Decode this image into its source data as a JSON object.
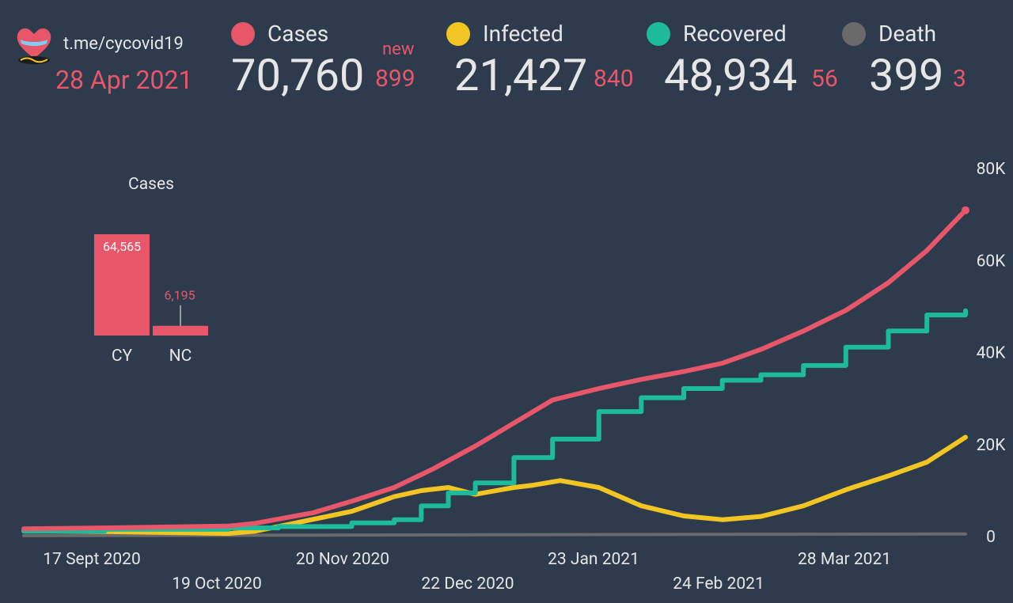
{
  "header": {
    "channel": "t.me/cycovid19",
    "date": "28 Apr 2021",
    "logo_icon": "cyprus-heart-icon"
  },
  "stats": {
    "cases": {
      "label": "Cases",
      "value": "70,760",
      "delta": "899",
      "new_tag": "new",
      "color": "#e8566a"
    },
    "infected": {
      "label": "Infected",
      "value": "21,427",
      "delta": "840",
      "color": "#f2c522"
    },
    "recovered": {
      "label": "Recovered",
      "value": "48,934",
      "delta": "56",
      "color": "#1dbb9a"
    },
    "death": {
      "label": "Death",
      "value": "399",
      "delta": "3",
      "color": "#6a6a6a"
    }
  },
  "chart_data": [
    {
      "type": "bar",
      "title": "Cases",
      "categories": [
        "CY",
        "NC"
      ],
      "values": [
        64565,
        6195
      ],
      "value_labels": [
        "64,565",
        "6,195"
      ],
      "color": "#e8566a"
    },
    {
      "type": "line",
      "x_ticks": [
        "17 Sept 2020",
        "19 Oct 2020",
        "20 Nov 2020",
        "22 Dec 2020",
        "23 Jan 2021",
        "24 Feb 2021",
        "28 Mar 2021"
      ],
      "y_ticks": [
        "80K",
        "60K",
        "40K",
        "20K",
        "0"
      ],
      "ylim": [
        0,
        80000
      ],
      "x_range": [
        "2020-08-27",
        "2021-04-28"
      ],
      "series": [
        {
          "name": "Cases",
          "color": "#e8566a",
          "points": [
            [
              "2020-08-27",
              1500
            ],
            [
              "2020-09-17",
              1700
            ],
            [
              "2020-10-19",
              2100
            ],
            [
              "2020-10-26",
              2700
            ],
            [
              "2020-11-10",
              5000
            ],
            [
              "2020-11-20",
              7500
            ],
            [
              "2020-12-01",
              10500
            ],
            [
              "2020-12-11",
              14500
            ],
            [
              "2020-12-22",
              19500
            ],
            [
              "2021-01-01",
              24500
            ],
            [
              "2021-01-11",
              29500
            ],
            [
              "2021-01-23",
              32000
            ],
            [
              "2021-02-03",
              34000
            ],
            [
              "2021-02-14",
              35700
            ],
            [
              "2021-02-24",
              37500
            ],
            [
              "2021-03-06",
              40500
            ],
            [
              "2021-03-17",
              44500
            ],
            [
              "2021-03-28",
              49000
            ],
            [
              "2021-04-08",
              55000
            ],
            [
              "2021-04-18",
              62000
            ],
            [
              "2021-04-28",
              70760
            ]
          ]
        },
        {
          "name": "Infected",
          "color": "#f2c522",
          "points": [
            [
              "2020-08-27",
              1100
            ],
            [
              "2020-09-17",
              900
            ],
            [
              "2020-10-19",
              500
            ],
            [
              "2020-10-26",
              1000
            ],
            [
              "2020-11-05",
              2700
            ],
            [
              "2020-11-20",
              5300
            ],
            [
              "2020-12-01",
              8500
            ],
            [
              "2020-12-08",
              9800
            ],
            [
              "2020-12-15",
              10500
            ],
            [
              "2020-12-22",
              9000
            ],
            [
              "2021-01-01",
              10500
            ],
            [
              "2021-01-06",
              11000
            ],
            [
              "2021-01-13",
              12000
            ],
            [
              "2021-01-23",
              10500
            ],
            [
              "2021-02-03",
              6500
            ],
            [
              "2021-02-14",
              4300
            ],
            [
              "2021-02-24",
              3500
            ],
            [
              "2021-03-06",
              4200
            ],
            [
              "2021-03-17",
              6500
            ],
            [
              "2021-03-28",
              10000
            ],
            [
              "2021-04-08",
              13000
            ],
            [
              "2021-04-18",
              16000
            ],
            [
              "2021-04-28",
              21427
            ]
          ]
        },
        {
          "name": "Recovered",
          "color": "#1dbb9a",
          "points": [
            [
              "2020-08-27",
              1000
            ],
            [
              "2020-09-17",
              1400
            ],
            [
              "2020-10-19",
              1700
            ],
            [
              "2020-11-01",
              2000
            ],
            [
              "2020-11-20",
              2800
            ],
            [
              "2020-12-01",
              3500
            ],
            [
              "2020-12-08",
              6500
            ],
            [
              "2020-12-15",
              9300
            ],
            [
              "2020-12-22",
              11500
            ],
            [
              "2021-01-01",
              17000
            ],
            [
              "2021-01-11",
              21000
            ],
            [
              "2021-01-23",
              27000
            ],
            [
              "2021-02-03",
              30000
            ],
            [
              "2021-02-14",
              32000
            ],
            [
              "2021-02-24",
              33800
            ],
            [
              "2021-03-06",
              35000
            ],
            [
              "2021-03-17",
              37000
            ],
            [
              "2021-03-28",
              41000
            ],
            [
              "2021-04-08",
              44500
            ],
            [
              "2021-04-18",
              48000
            ],
            [
              "2021-04-28",
              48934
            ]
          ]
        },
        {
          "name": "Death",
          "color": "#6a6a6a",
          "points": [
            [
              "2020-08-27",
              20
            ],
            [
              "2021-04-28",
              399
            ]
          ]
        }
      ]
    }
  ]
}
